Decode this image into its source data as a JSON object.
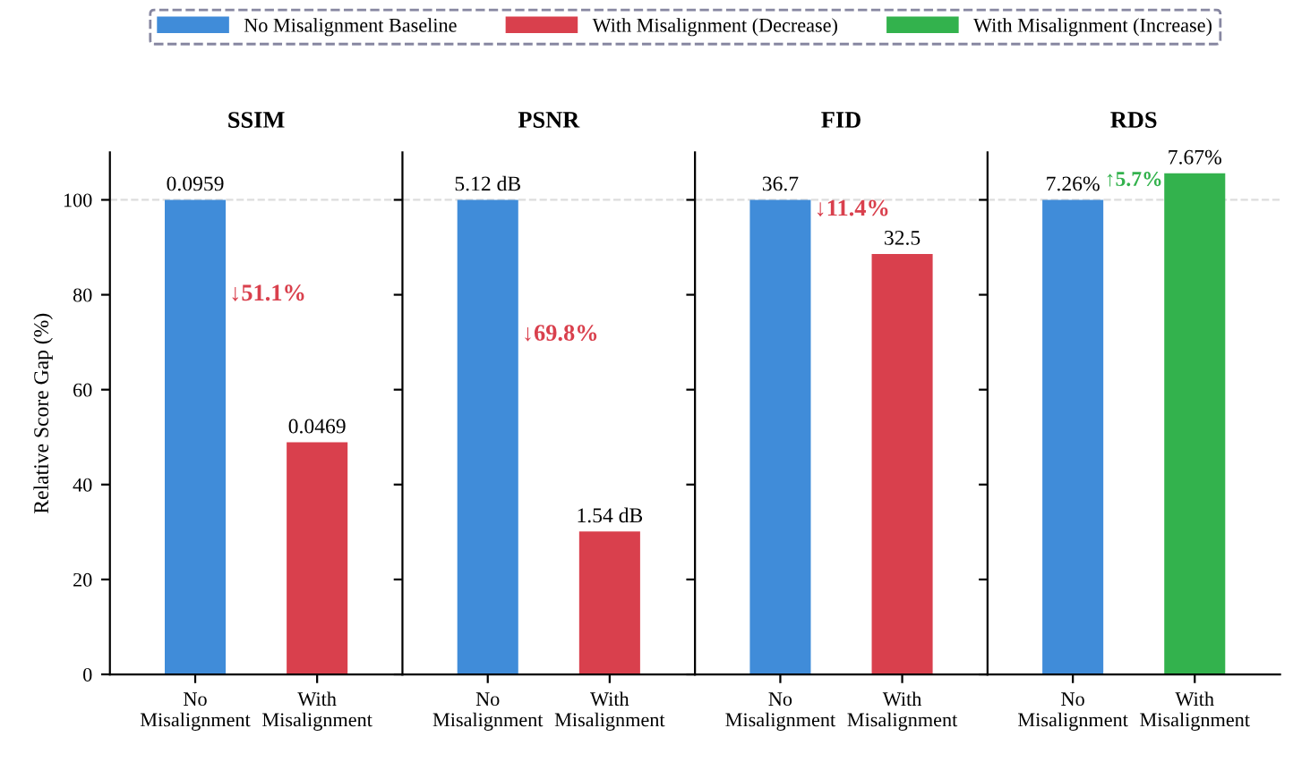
{
  "chart_data": [
    {
      "type": "bar",
      "title": "SSIM",
      "ylabel": "Relative Score Gap (%)",
      "categories": [
        "No\nMisalignment",
        "With\nMisalignment"
      ],
      "ylim": [
        0,
        110
      ],
      "yticks": [
        0,
        20,
        40,
        60,
        80,
        100
      ],
      "legend": "top",
      "grid": false,
      "series": [
        {
          "name": "No Misalignment Baseline",
          "color": "#408cd9",
          "values": [
            100,
            null
          ]
        },
        {
          "name": "With Misalignment (Decrease)",
          "color": "#d9404d",
          "values": [
            null,
            48.9
          ]
        }
      ],
      "ref_lines": [
        {
          "axis": "y",
          "value": 100,
          "color": "#dddddd",
          "line_style": "dashed"
        }
      ],
      "annotations": [
        {
          "text": "0.0959",
          "x": "No\nMisalignment",
          "y": 100
        },
        {
          "text": "0.0469",
          "x": "With\nMisalignment",
          "y": 48.9
        },
        "↓51.1%"
      ]
    },
    {
      "type": "bar",
      "title": "PSNR",
      "categories": [
        "No\nMisalignment",
        "With\nMisalignment"
      ],
      "ylim": [
        0,
        110
      ],
      "yticks": [
        0,
        20,
        40,
        60,
        80,
        100
      ],
      "tick_labels": "x",
      "legend": "top",
      "grid": false,
      "series": [
        {
          "name": "No Misalignment Baseline",
          "color": "#408cd9",
          "values": [
            100,
            null
          ]
        },
        {
          "name": "With Misalignment (Decrease)",
          "color": "#d9404d",
          "values": [
            null,
            30.1
          ]
        }
      ],
      "ref_lines": [
        {
          "axis": "y",
          "value": 100,
          "color": "#dddddd",
          "line_style": "dashed"
        }
      ],
      "annotations": [
        {
          "text": "5.12 dB",
          "x": "No\nMisalignment",
          "y": 100
        },
        {
          "text": "1.54 dB",
          "x": "With\nMisalignment",
          "y": 30.1
        },
        "↓69.8%"
      ]
    },
    {
      "type": "bar",
      "title": "FID",
      "categories": [
        "No\nMisalignment",
        "With\nMisalignment"
      ],
      "ylim": [
        0,
        110
      ],
      "yticks": [
        0,
        20,
        40,
        60,
        80,
        100
      ],
      "tick_labels": "x",
      "legend": "top",
      "grid": false,
      "series": [
        {
          "name": "No Misalignment Baseline",
          "color": "#408cd9",
          "values": [
            100,
            null
          ]
        },
        {
          "name": "With Misalignment (Decrease)",
          "color": "#d9404d",
          "values": [
            null,
            88.6
          ]
        }
      ],
      "ref_lines": [
        {
          "axis": "y",
          "value": 100,
          "color": "#dddddd",
          "line_style": "dashed"
        }
      ],
      "annotations": [
        {
          "text": "36.7",
          "x": "No\nMisalignment",
          "y": 100
        },
        {
          "text": "32.5",
          "x": "With\nMisalignment",
          "y": 88.6
        },
        "↓11.4%"
      ]
    },
    {
      "type": "bar",
      "title": "RDS",
      "categories": [
        "No\nMisalignment",
        "With\nMisalignment"
      ],
      "ylim": [
        0,
        110
      ],
      "yticks": [
        0,
        20,
        40,
        60,
        80,
        100
      ],
      "tick_labels": "x",
      "legend": "top",
      "grid": false,
      "series": [
        {
          "name": "No Misalignment Baseline",
          "color": "#408cd9",
          "values": [
            100,
            null
          ]
        },
        {
          "name": "With Misalignment (Increase)",
          "color": "#33b24d",
          "values": [
            null,
            105.6
          ]
        }
      ],
      "ref_lines": [
        {
          "axis": "y",
          "value": 100,
          "color": "#dddddd",
          "line_style": "dashed"
        }
      ],
      "annotations": [
        {
          "text": "7.26%",
          "x": "No\nMisalignment",
          "y": 100
        },
        {
          "text": "7.67%",
          "x": "With\nMisalignment",
          "y": 105.6
        },
        "↑5.7%"
      ]
    }
  ]
}
